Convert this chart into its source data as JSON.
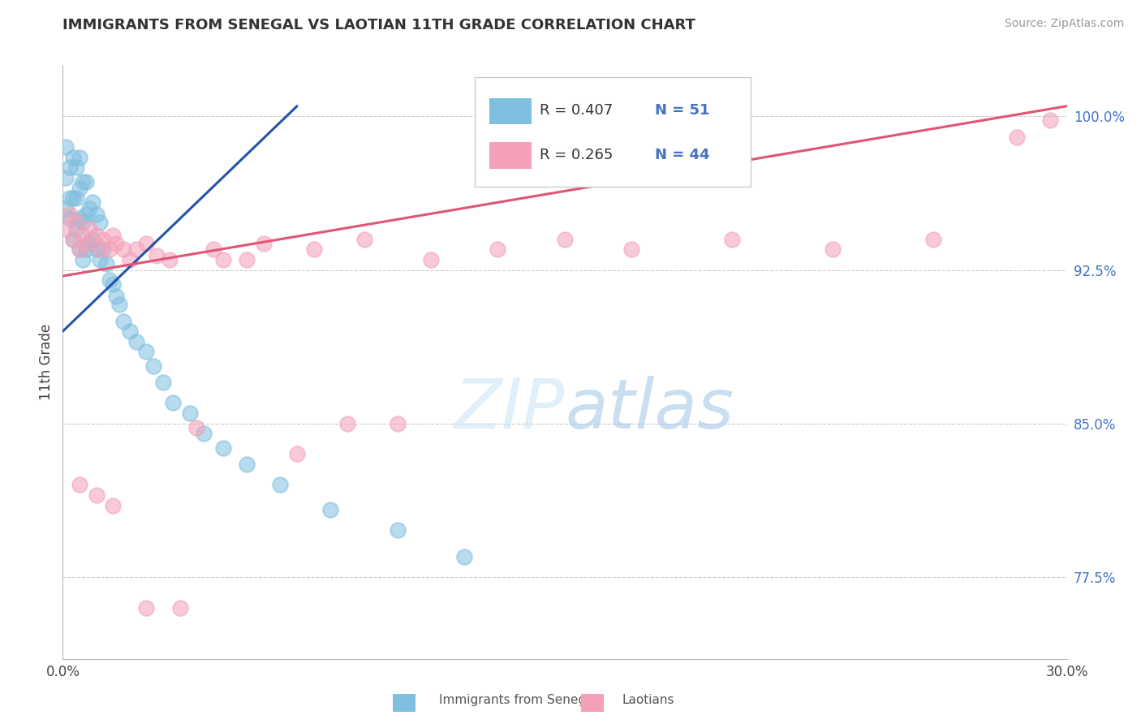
{
  "title": "IMMIGRANTS FROM SENEGAL VS LAOTIAN 11TH GRADE CORRELATION CHART",
  "source": "Source: ZipAtlas.com",
  "ylabel": "11th Grade",
  "ylabel_right_labels": [
    "100.0%",
    "92.5%",
    "85.0%",
    "77.5%"
  ],
  "ylabel_right_values": [
    1.0,
    0.925,
    0.85,
    0.775
  ],
  "blue_R": "R = 0.407",
  "blue_N": "N = 51",
  "pink_R": "R = 0.265",
  "pink_N": "N = 44",
  "blue_color": "#7fbfdf",
  "pink_color": "#f4a0b8",
  "blue_line_color": "#2255aa",
  "pink_line_color": "#e05575",
  "xlim": [
    0.0,
    0.3
  ],
  "ylim": [
    0.735,
    1.025
  ],
  "blue_line_x0": 0.0,
  "blue_line_y0": 0.895,
  "blue_line_x1": 0.07,
  "blue_line_y1": 1.005,
  "pink_line_x0": 0.0,
  "pink_line_y0": 0.922,
  "pink_line_x1": 0.3,
  "pink_line_y1": 1.005,
  "blue_dots_x": [
    0.001,
    0.001,
    0.001,
    0.002,
    0.002,
    0.002,
    0.003,
    0.003,
    0.003,
    0.004,
    0.004,
    0.004,
    0.005,
    0.005,
    0.005,
    0.005,
    0.006,
    0.006,
    0.006,
    0.007,
    0.007,
    0.007,
    0.008,
    0.008,
    0.009,
    0.009,
    0.01,
    0.01,
    0.011,
    0.011,
    0.012,
    0.013,
    0.014,
    0.015,
    0.016,
    0.017,
    0.018,
    0.02,
    0.022,
    0.025,
    0.027,
    0.03,
    0.033,
    0.038,
    0.042,
    0.048,
    0.055,
    0.065,
    0.08,
    0.1,
    0.12
  ],
  "blue_dots_y": [
    0.955,
    0.97,
    0.985,
    0.95,
    0.96,
    0.975,
    0.94,
    0.96,
    0.98,
    0.945,
    0.96,
    0.975,
    0.935,
    0.95,
    0.965,
    0.98,
    0.93,
    0.948,
    0.968,
    0.935,
    0.952,
    0.968,
    0.938,
    0.955,
    0.94,
    0.958,
    0.935,
    0.952,
    0.93,
    0.948,
    0.935,
    0.928,
    0.92,
    0.918,
    0.912,
    0.908,
    0.9,
    0.895,
    0.89,
    0.885,
    0.878,
    0.87,
    0.86,
    0.855,
    0.845,
    0.838,
    0.83,
    0.82,
    0.808,
    0.798,
    0.785
  ],
  "pink_dots_x": [
    0.001,
    0.002,
    0.003,
    0.004,
    0.005,
    0.006,
    0.007,
    0.008,
    0.01,
    0.011,
    0.012,
    0.014,
    0.015,
    0.016,
    0.018,
    0.02,
    0.022,
    0.025,
    0.028,
    0.032,
    0.04,
    0.048,
    0.06,
    0.075,
    0.09,
    0.11,
    0.13,
    0.15,
    0.17,
    0.2,
    0.23,
    0.26,
    0.285,
    0.295,
    0.005,
    0.01,
    0.015,
    0.025,
    0.035,
    0.045,
    0.055,
    0.07,
    0.085,
    0.1
  ],
  "pink_dots_y": [
    0.945,
    0.952,
    0.94,
    0.948,
    0.935,
    0.942,
    0.938,
    0.945,
    0.942,
    0.935,
    0.94,
    0.935,
    0.942,
    0.938,
    0.935,
    0.93,
    0.935,
    0.938,
    0.932,
    0.93,
    0.848,
    0.93,
    0.938,
    0.935,
    0.94,
    0.93,
    0.935,
    0.94,
    0.935,
    0.94,
    0.935,
    0.94,
    0.99,
    0.998,
    0.82,
    0.815,
    0.81,
    0.76,
    0.76,
    0.935,
    0.93,
    0.835,
    0.85,
    0.85
  ]
}
